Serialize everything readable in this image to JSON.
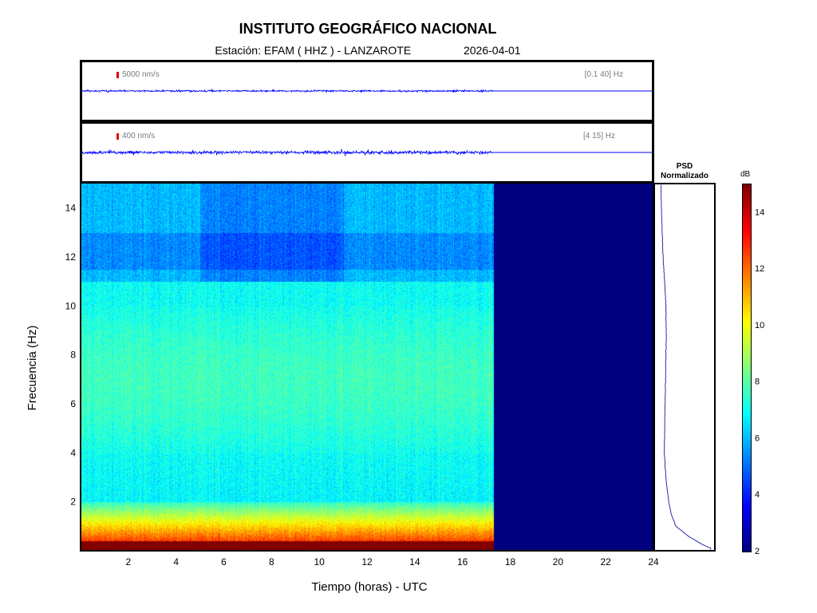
{
  "header": {
    "title": "INSTITUTO GEOGRÁFICO NACIONAL",
    "station_label": "Estación:",
    "station": "EFAM ( HHZ ) - LANZAROTE",
    "date": "2026-04-01"
  },
  "traces": [
    {
      "scale": "5000 nm/s",
      "band": "[0.1 40] Hz"
    },
    {
      "scale": "400 nm/s",
      "band": "[4 15] Hz"
    }
  ],
  "psd": {
    "title_line1": "PSD",
    "title_line2": "Normalizado"
  },
  "colorbar": {
    "unit": "dB",
    "ticks": [
      2,
      4,
      6,
      8,
      10,
      12,
      14
    ],
    "range": [
      2,
      15
    ]
  },
  "chart_data": {
    "type": "heatmap",
    "title": "INSTITUTO GEOGRÁFICO NACIONAL",
    "xlabel": "Tiempo (horas) - UTC",
    "ylabel": "Frecuencia  (Hz)",
    "xlim": [
      0,
      24
    ],
    "ylim": [
      0,
      15
    ],
    "x_ticks": [
      2,
      4,
      6,
      8,
      10,
      12,
      14,
      16,
      18,
      20,
      22,
      24
    ],
    "y_ticks": [
      2,
      4,
      6,
      8,
      10,
      12,
      14
    ],
    "data_end_hour": 17.3,
    "colormap": "jet",
    "colors": {
      "no_data": "#00007f",
      "trace": "#0000ff",
      "psd_line": "#1a1aa0"
    },
    "psd_profile": {
      "freq_hz": [
        0.1,
        0.3,
        0.6,
        1,
        1.5,
        2,
        3,
        4,
        5,
        6,
        7,
        8,
        9,
        10,
        11,
        12,
        13,
        14,
        15
      ],
      "level_db": [
        14.5,
        12,
        9,
        6,
        4.8,
        4.2,
        3.5,
        3.1,
        3.2,
        3.3,
        3.4,
        3.5,
        3.6,
        3.5,
        3.2,
        2.8,
        2.6,
        2.4,
        2.3
      ]
    }
  }
}
